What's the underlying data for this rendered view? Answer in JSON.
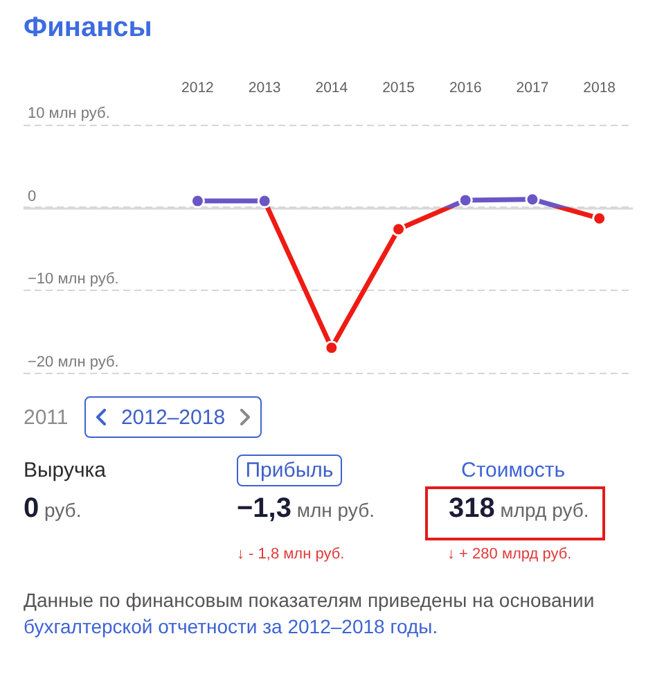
{
  "chart_data": [
    {
      "type": "line",
      "title": "Финансы",
      "x": [
        2012,
        2013,
        2014,
        2015,
        2016,
        2017,
        2018
      ],
      "series": [
        {
          "color": "#6a56c6",
          "colors": [
            "#6a56c6",
            "#6a56c6",
            "#ee1b14",
            "#ee1b14",
            "#6a56c6",
            "#6a56c6",
            "#ee1b14"
          ],
          "values": [
            0.8,
            0.8,
            -16.9,
            -2.6,
            0.9,
            1,
            -1.3
          ]
        }
      ],
      "xlim": [
        2009.4,
        2018.5
      ],
      "xticks": [
        2012,
        2013,
        2014,
        2015,
        2016,
        2017,
        2018
      ],
      "ylim": [
        -20,
        10
      ],
      "yticks": [
        {
          "value": 10,
          "label": "10 млн руб."
        },
        0,
        {
          "value": -10,
          "label": "−10 млн руб."
        },
        {
          "value": -20,
          "label": "−20 млн руб."
        }
      ],
      "ref_lines": [
        {
          "axis": "y",
          "value": 0,
          "color": "#d9d9d9"
        }
      ],
      "grid": "y",
      "marker": "circle"
    },
    {
      "type": "other",
      "annotations": [
        "2011",
        "2012–2018",
        "Выручка",
        "Прибыль",
        "Стоимость",
        "0 руб.",
        "−1,3 млн руб.",
        "318 млрд руб.",
        "↓ - 1,8 млн руб.",
        "↓ + 280 млрд руб.",
        "Данные по финансовым показателям приведены на основании",
        "бухгалтерской отчетности за 2012–2018 годы."
      ]
    }
  ]
}
